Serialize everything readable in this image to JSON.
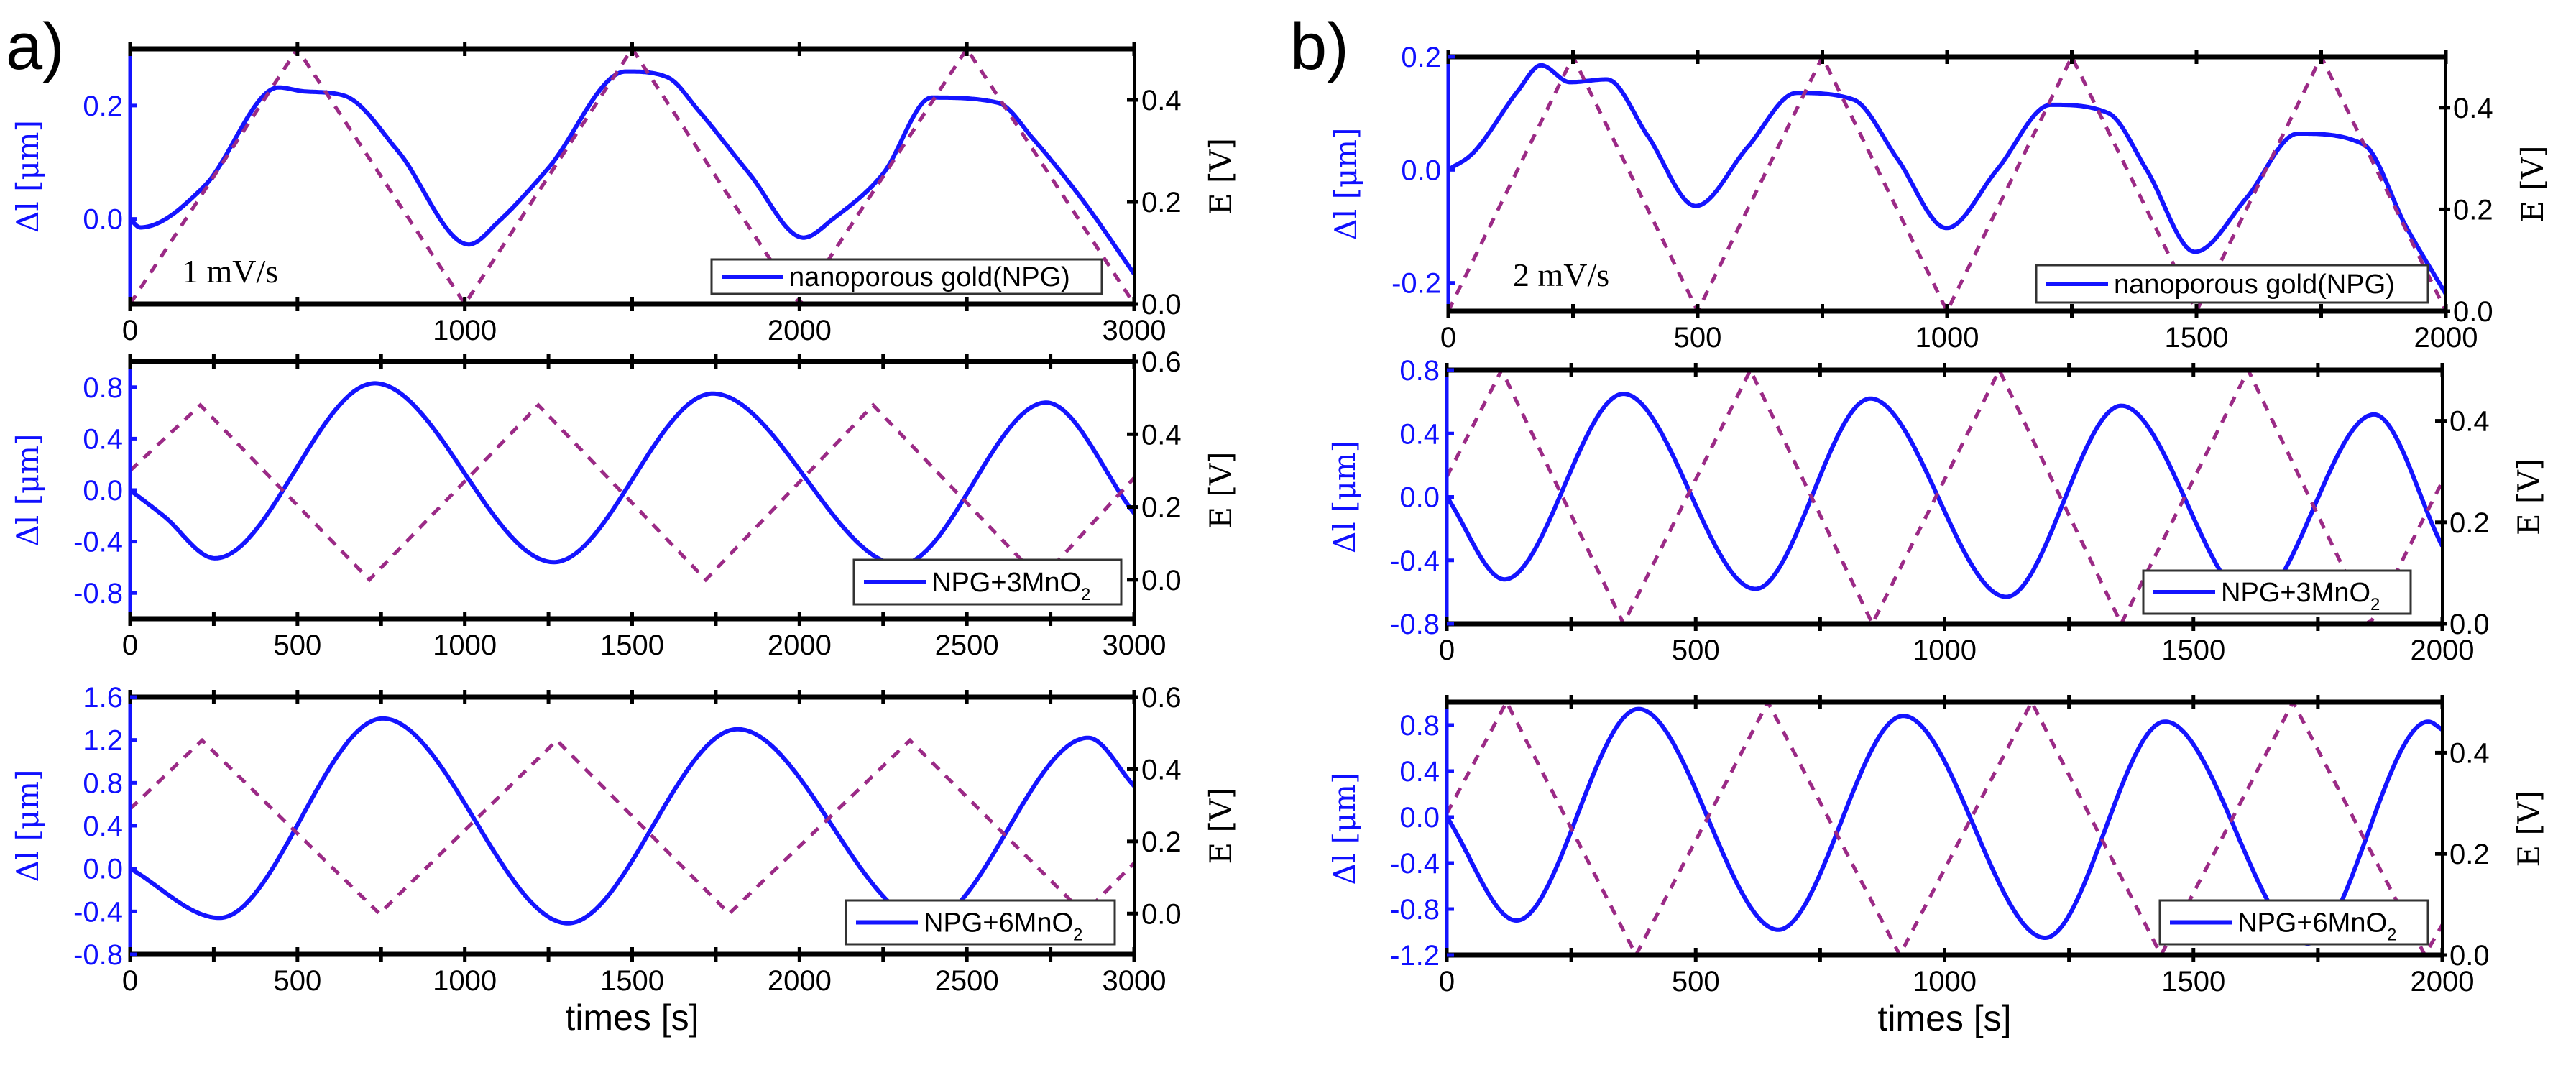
{
  "colors": {
    "dl": "#1414ff",
    "E": "#9b2a86",
    "axis": "#000000"
  },
  "panels": [
    {
      "label": "a)"
    },
    {
      "label": "b)"
    }
  ],
  "chart_data": [
    {
      "type": "line",
      "panel": "a",
      "annotation": "1 mV/s",
      "xlabel": "",
      "ylabel": "Δl [μm]",
      "ylabel_right": "E [V]",
      "xlim": [
        0,
        3000
      ],
      "ylim": [
        -0.15,
        0.3
      ],
      "ylim_right": [
        0,
        0.5
      ],
      "xticks": [
        "0",
        "1000",
        "2000",
        "3000"
      ],
      "xminor": 500,
      "yticks": [
        "0.0",
        "0.2"
      ],
      "yticks_right": [
        "0.0",
        "0.2",
        "0.4"
      ],
      "legend": {
        "text": "nanoporous gold(NPG)",
        "sub": ""
      },
      "series": [
        {
          "name": "Δl",
          "axis": "left",
          "x": [
            0,
            30,
            222,
            444,
            520,
            642,
            800,
            1012,
            1100,
            1250,
            1481,
            1605,
            1700,
            1850,
            2012,
            2100,
            2250,
            2395,
            2593,
            2700,
            2850,
            3000
          ],
          "y": [
            0.0,
            -0.015,
            0.058,
            0.232,
            0.225,
            0.217,
            0.12,
            -0.045,
            -0.005,
            0.09,
            0.26,
            0.25,
            0.19,
            0.08,
            -0.033,
            0.0,
            0.08,
            0.214,
            0.205,
            0.14,
            0.03,
            -0.097
          ]
        },
        {
          "name": "E",
          "axis": "right",
          "x": [
            0,
            500,
            1000,
            1500,
            2000,
            2500,
            3000
          ],
          "y": [
            0,
            0.5,
            0,
            0.5,
            0,
            0.5,
            0
          ]
        }
      ]
    },
    {
      "type": "line",
      "panel": "a",
      "annotation": "",
      "xlabel": "",
      "ylabel": "Δl [μm]",
      "ylabel_right": "E [V]",
      "xlim": [
        0,
        3000
      ],
      "ylim": [
        -1.0,
        1.0
      ],
      "ylim_right": [
        -0.107,
        0.6
      ],
      "xticks": [
        "0",
        "500",
        "1000",
        "1500",
        "2000",
        "2500",
        "3000"
      ],
      "xminor": 250,
      "yticks": [
        "-0.8",
        "-0.4",
        "0.0",
        "0.4",
        "0.8"
      ],
      "yticks_right": [
        "0.0",
        "0.2",
        "0.4",
        "0.6"
      ],
      "legend": {
        "text": "NPG+3MnO",
        "sub": "2"
      },
      "series": [
        {
          "name": "Δl",
          "axis": "left",
          "x": [
            0,
            100,
            254,
            731,
            1266,
            1741,
            2300,
            2737,
            3000
          ],
          "y": [
            0.0,
            -0.2,
            -0.53,
            0.83,
            -0.56,
            0.75,
            -0.58,
            0.68,
            -0.18
          ]
        },
        {
          "name": "E",
          "axis": "right",
          "x": [
            0,
            210,
            715,
            1220,
            1720,
            2220,
            2720,
            3000
          ],
          "y": [
            0.3,
            0.48,
            0,
            0.48,
            0,
            0.48,
            0,
            0.28
          ]
        }
      ]
    },
    {
      "type": "line",
      "panel": "a",
      "annotation": "",
      "xlabel": "times [s]",
      "ylabel": "Δl [μm]",
      "ylabel_right": "E [V]",
      "xlim": [
        0,
        3000
      ],
      "ylim": [
        -0.8,
        1.6
      ],
      "ylim_right": [
        -0.113,
        0.6
      ],
      "xticks": [
        "0",
        "500",
        "1000",
        "1500",
        "2000",
        "2500",
        "3000"
      ],
      "xminor": 250,
      "yticks": [
        "-0.8",
        "-0.4",
        "0.0",
        "0.4",
        "0.8",
        "1.2",
        "1.6"
      ],
      "yticks_right": [
        "0.0",
        "0.2",
        "0.4",
        "0.6"
      ],
      "legend": {
        "text": "NPG+6MnO",
        "sub": "2"
      },
      "series": [
        {
          "name": "Δl",
          "axis": "left",
          "x": [
            0,
            267,
            755,
            1308,
            1815,
            2380,
            2863,
            3000
          ],
          "y": [
            0.0,
            -0.46,
            1.4,
            -0.51,
            1.3,
            -0.5,
            1.22,
            0.77
          ]
        },
        {
          "name": "E",
          "axis": "right",
          "x": [
            0,
            215,
            745,
            1275,
            1790,
            2330,
            2850,
            3000
          ],
          "y": [
            0.29,
            0.48,
            0,
            0.48,
            0,
            0.48,
            0,
            0.14
          ]
        }
      ]
    },
    {
      "type": "line",
      "panel": "b",
      "annotation": "2 mV/s",
      "xlabel": "",
      "ylabel": "Δl [μm]",
      "ylabel_right": "E [V]",
      "xlim": [
        0,
        2000
      ],
      "ylim": [
        -0.25,
        0.2
      ],
      "ylim_right": [
        0,
        0.5
      ],
      "xticks": [
        "0",
        "500",
        "1000",
        "1500",
        "2000"
      ],
      "xminor": 250,
      "yticks": [
        "-0.2",
        "0.0",
        "0.2"
      ],
      "yticks_right": [
        "0.0",
        "0.2",
        "0.4"
      ],
      "legend": {
        "text": "nanoporous gold(NPG)",
        "sub": ""
      },
      "series": [
        {
          "name": "Δl",
          "axis": "left",
          "x": [
            0,
            50,
            140,
            186,
            244,
            318,
            400,
            496,
            600,
            698,
            813,
            900,
            999,
            1100,
            1208,
            1324,
            1400,
            1497,
            1600,
            1703,
            1835,
            1920,
            2000
          ],
          "y": [
            0.0,
            0.03,
            0.14,
            0.185,
            0.155,
            0.16,
            0.06,
            -0.064,
            0.04,
            0.136,
            0.124,
            0.02,
            -0.103,
            0.0,
            0.115,
            0.1,
            0.0,
            -0.145,
            -0.05,
            0.064,
            0.045,
            -0.1,
            -0.22
          ]
        },
        {
          "name": "E",
          "axis": "right",
          "x": [
            0,
            250,
            500,
            750,
            1000,
            1250,
            1500,
            1750,
            2000
          ],
          "y": [
            0,
            0.5,
            0,
            0.5,
            0,
            0.5,
            0,
            0.5,
            0
          ]
        }
      ]
    },
    {
      "type": "line",
      "panel": "b",
      "annotation": "",
      "xlabel": "",
      "ylabel": "Δl [μm]",
      "ylabel_right": "E [V]",
      "xlim": [
        0,
        2000
      ],
      "ylim": [
        -0.8,
        0.8
      ],
      "ylim_right": [
        0,
        0.5
      ],
      "xticks": [
        "0",
        "500",
        "1000",
        "1500",
        "2000"
      ],
      "xminor": 250,
      "yticks": [
        "-0.8",
        "-0.4",
        "0.0",
        "0.4",
        "0.8"
      ],
      "yticks_right": [
        "0.0",
        "0.2",
        "0.4"
      ],
      "legend": {
        "text": "NPG+3MnO",
        "sub": "2"
      },
      "series": [
        {
          "name": "Δl",
          "axis": "left",
          "x": [
            0,
            116,
            355,
            620,
            851,
            1124,
            1355,
            1620,
            1863,
            2000
          ],
          "y": [
            0.0,
            -0.52,
            0.65,
            -0.58,
            0.62,
            -0.63,
            0.575,
            -0.66,
            0.52,
            -0.31
          ]
        },
        {
          "name": "E",
          "axis": "right",
          "x": [
            0,
            110,
            355,
            610,
            855,
            1110,
            1355,
            1610,
            1855,
            2000
          ],
          "y": [
            0.29,
            0.5,
            0,
            0.5,
            0,
            0.5,
            0,
            0.5,
            0,
            0.28
          ]
        }
      ]
    },
    {
      "type": "line",
      "panel": "b",
      "annotation": "",
      "xlabel": "times [s]",
      "ylabel": "Δl [μm]",
      "ylabel_right": "E [V]",
      "xlim": [
        0,
        2000
      ],
      "ylim": [
        -1.2,
        1.0
      ],
      "ylim_right": [
        0,
        0.5
      ],
      "xticks": [
        "0",
        "500",
        "1000",
        "1500",
        "2000"
      ],
      "xminor": 250,
      "yticks": [
        "-1.2",
        "-0.8",
        "-0.4",
        "0.0",
        "0.4",
        "0.8"
      ],
      "yticks_right": [
        "0.0",
        "0.2",
        "0.4"
      ],
      "legend": {
        "text": "NPG+6MnO",
        "sub": "2"
      },
      "series": [
        {
          "name": "Δl",
          "axis": "left",
          "x": [
            0,
            140,
            385,
            666,
            917,
            1202,
            1443,
            1730,
            1972,
            2000
          ],
          "y": [
            0.0,
            -0.9,
            0.94,
            -0.98,
            0.88,
            -1.05,
            0.83,
            -1.1,
            0.83,
            0.76
          ]
        },
        {
          "name": "E",
          "axis": "right",
          "x": [
            0,
            120,
            380,
            645,
            910,
            1175,
            1435,
            1700,
            1965,
            2000
          ],
          "y": [
            0.28,
            0.5,
            0,
            0.5,
            0,
            0.5,
            0,
            0.5,
            0,
            0.06
          ]
        }
      ]
    }
  ]
}
